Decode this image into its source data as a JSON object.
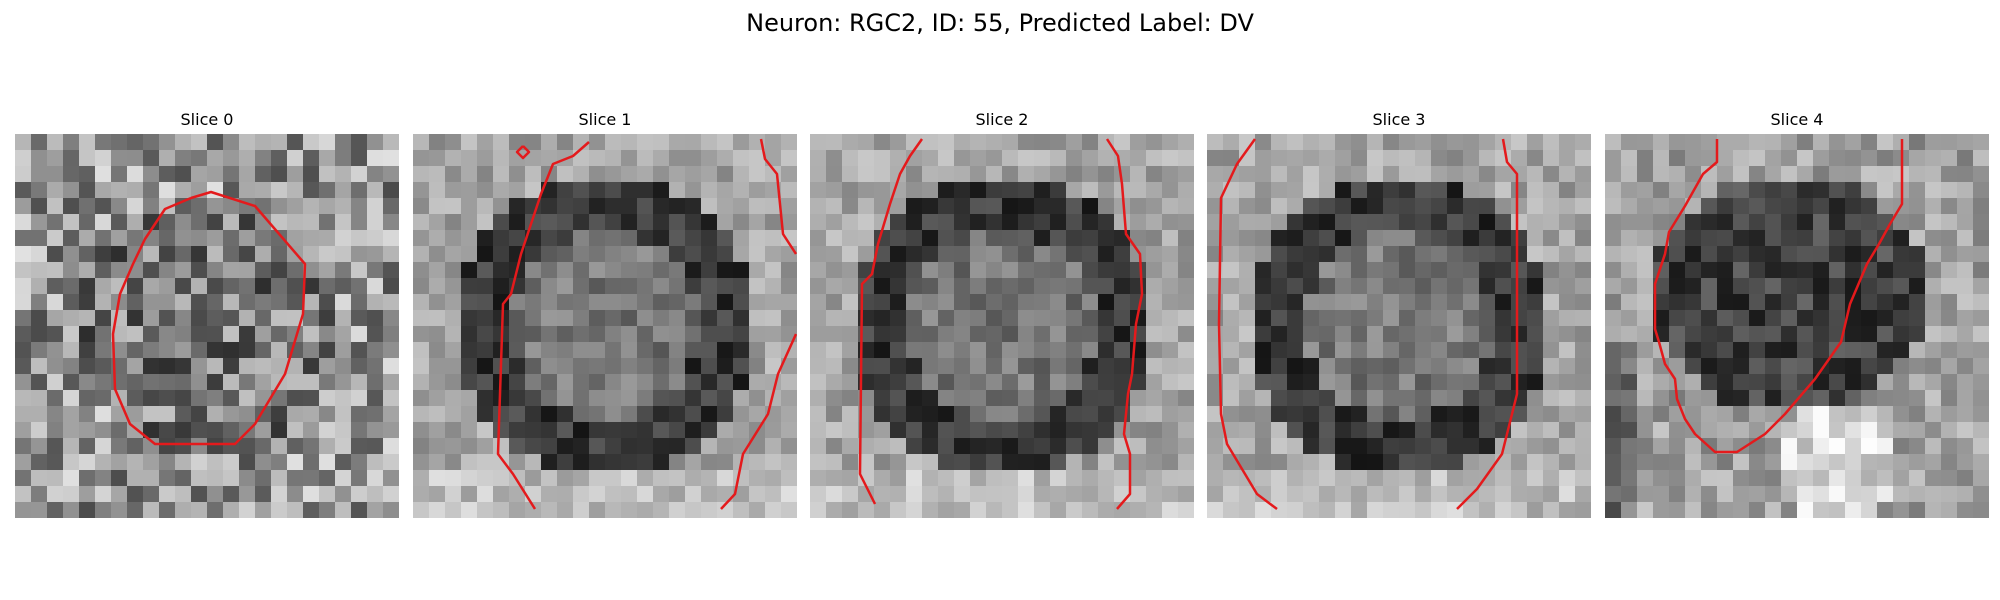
{
  "figure": {
    "title": "Neuron: RGC2, ID: 55, Predicted Label: DV"
  },
  "panels": [
    {
      "title": "Slice 0",
      "texture": "speckled-noise",
      "contour": "closed-octagon"
    },
    {
      "title": "Slice 1",
      "texture": "dark-ring-soma",
      "contour": "open-vertical-boundaries"
    },
    {
      "title": "Slice 2",
      "texture": "dark-ring-soma",
      "contour": "open-vertical-boundaries"
    },
    {
      "title": "Slice 3",
      "texture": "dark-ring-soma",
      "contour": "open-vertical-boundaries"
    },
    {
      "title": "Slice 4",
      "texture": "dark-blob-bright-bottom",
      "contour": "open-u-shape"
    }
  ],
  "colors": {
    "contour": "#e41a1c",
    "background": "#ffffff"
  }
}
